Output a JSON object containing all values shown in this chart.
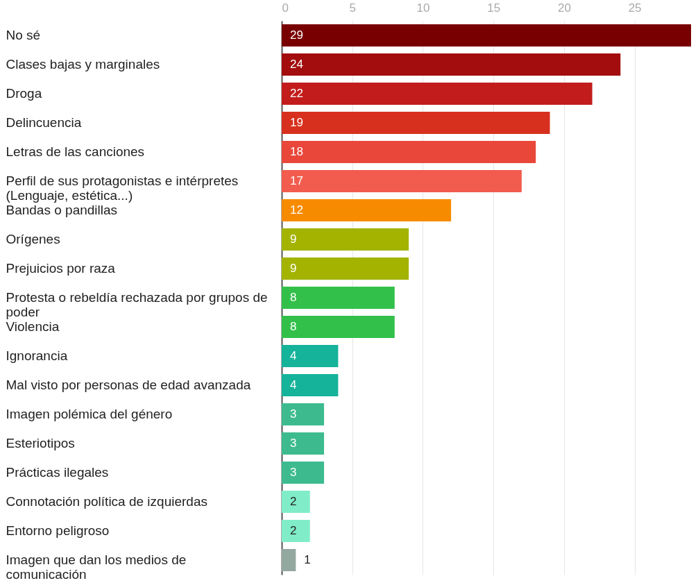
{
  "chart_data": {
    "type": "bar",
    "orientation": "horizontal",
    "categories": [
      "No sé",
      "Clases bajas y marginales",
      "Droga",
      "Delincuencia",
      "Letras de las canciones",
      "Perfil de sus protagonistas e intérpretes (Lenguaje, estética...)",
      "Bandas o pandillas",
      "Orígenes",
      "Prejuicios por raza",
      "Protesta o rebeldía rechazada por grupos de poder",
      "Violencia",
      "Ignorancia",
      "Mal visto por personas de edad avanzada",
      "Imagen polémica del género",
      "Esteriotipos",
      "Prácticas ilegales",
      "Connotación política de izquierdas",
      "Entorno peligroso",
      "Imagen que dan los medios de comunicación"
    ],
    "values": [
      29,
      24,
      22,
      19,
      18,
      17,
      12,
      9,
      9,
      8,
      8,
      4,
      4,
      3,
      3,
      3,
      2,
      2,
      1
    ],
    "colors": [
      "#780000",
      "#a30d0d",
      "#c21c1c",
      "#d7301f",
      "#e8473a",
      "#f25c4e",
      "#f78b00",
      "#a3b300",
      "#a3b300",
      "#33c04a",
      "#33c04a",
      "#14b39a",
      "#14b39a",
      "#3dbb8f",
      "#3dbb8f",
      "#3dbb8f",
      "#80ecc8",
      "#80ecc8",
      "#93a89e"
    ],
    "xlim": [
      0,
      29
    ],
    "xticks": [
      0,
      5,
      10,
      15,
      20,
      25
    ],
    "grid": true,
    "data_labels": true
  }
}
